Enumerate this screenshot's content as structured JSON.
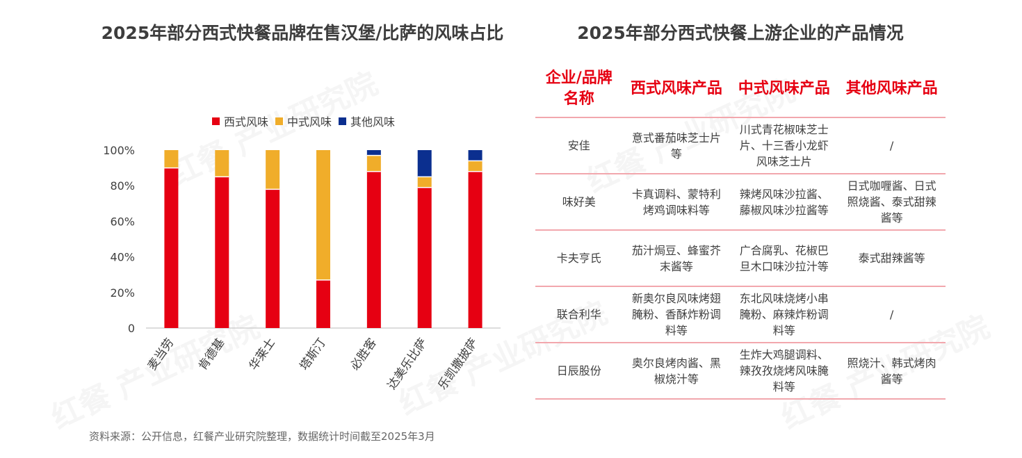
{
  "left_title": "2025年部分西式快餐品牌在售汉堡/比萨的风味占比",
  "right_title": "2025年部分西式快餐上游企业的产品情况",
  "legend": [
    {
      "label": "西式风味",
      "color": "#e60012"
    },
    {
      "label": "中式风味",
      "color": "#f0ad2a"
    },
    {
      "label": "其他风味",
      "color": "#0b2f8f"
    }
  ],
  "chart_data": {
    "type": "bar",
    "stacked": true,
    "title": "2025年部分西式快餐品牌在售汉堡/比萨的风味占比",
    "categories": [
      "麦当劳",
      "肯德基",
      "华莱士",
      "塔斯汀",
      "必胜客",
      "达美乐比萨",
      "乐凯撒披萨"
    ],
    "series": [
      {
        "name": "西式风味",
        "color": "#e60012",
        "values": [
          90,
          85,
          78,
          27,
          88,
          79,
          88
        ]
      },
      {
        "name": "中式风味",
        "color": "#f0ad2a",
        "values": [
          10,
          15,
          22,
          73,
          9,
          6,
          6
        ]
      },
      {
        "name": "其他风味",
        "color": "#0b2f8f",
        "values": [
          0,
          0,
          0,
          0,
          3,
          15,
          6
        ]
      }
    ],
    "ylim": [
      0,
      100
    ],
    "yticks": [
      "0",
      "20%",
      "40%",
      "60%",
      "80%",
      "100%"
    ],
    "ytick_values": [
      0,
      20,
      40,
      60,
      80,
      100
    ],
    "legend_position": "top"
  },
  "table": {
    "headers": [
      "企业/品牌名称",
      "西式风味产品",
      "中式风味产品",
      "其他风味产品"
    ],
    "rows": [
      [
        "安佳",
        "意式番茄味芝士片等",
        "川式青花椒味芝士片、十三香小龙虾风味芝士片",
        "/"
      ],
      [
        "味好美",
        "卡真调料、蒙特利烤鸡调味料等",
        "辣烤风味沙拉酱、藤椒风味沙拉酱等",
        "日式咖喱酱、日式照烧酱、泰式甜辣酱等"
      ],
      [
        "卡夫亨氏",
        "茄汁焗豆、蜂蜜芥末酱等",
        "广合腐乳、花椒巴旦木口味沙拉汁等",
        "泰式甜辣酱等"
      ],
      [
        "联合利华",
        "新奥尔良风味烤翅腌粉、香酥炸粉调料等",
        "东北风味烧烤小串腌粉、麻辣炸粉调料等",
        "/"
      ],
      [
        "日辰股份",
        "奥尔良烤肉酱、黑椒烧汁等",
        "生炸大鸡腿调料、辣孜孜烧烤风味腌料等",
        "照烧汁、韩式烤肉酱等"
      ]
    ]
  },
  "source": "资料来源：公开信息，红餐产业研究院整理，数据统计时间截至2025年3月",
  "watermark": "红餐 产业研究院"
}
